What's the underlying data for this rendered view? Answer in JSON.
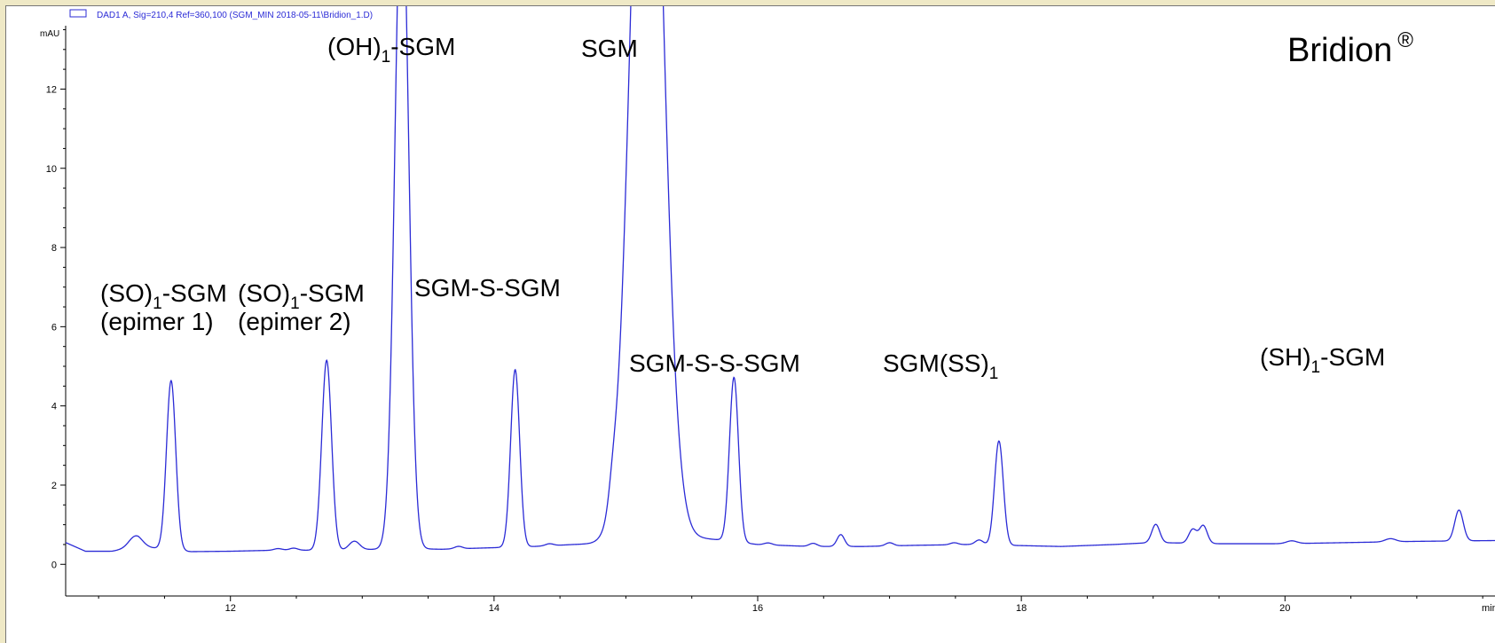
{
  "legend": {
    "text": "DAD1 A, Sig=210,4 Ref=360,100 (SGM_MIN 2018-05-11\\Bridion_1.D)",
    "color": "#2b2bd6"
  },
  "brand": {
    "name": "Bridion",
    "mark": "®"
  },
  "chart_data": {
    "type": "line",
    "ylabel": "mAU",
    "xlabel": "min",
    "xlim": [
      10.75,
      21.6
    ],
    "ylim": [
      -0.8,
      13.6
    ],
    "xticks": [
      12,
      14,
      16,
      18,
      20
    ],
    "yticks": [
      0,
      2,
      4,
      6,
      8,
      10,
      12
    ],
    "line_color": "#2b2bd6",
    "baseline": [
      [
        10.75,
        0.55
      ],
      [
        10.9,
        0.33
      ],
      [
        11.1,
        0.33
      ],
      [
        11.3,
        0.45
      ],
      [
        11.7,
        0.32
      ],
      [
        12.0,
        0.33
      ],
      [
        12.4,
        0.36
      ],
      [
        12.8,
        0.35
      ],
      [
        13.3,
        0.4
      ],
      [
        13.6,
        0.38
      ],
      [
        14.0,
        0.42
      ],
      [
        14.3,
        0.45
      ],
      [
        14.6,
        0.5
      ],
      [
        15.0,
        0.55
      ],
      [
        15.4,
        0.7
      ],
      [
        15.7,
        0.62
      ],
      [
        16.0,
        0.5
      ],
      [
        16.4,
        0.45
      ],
      [
        16.8,
        0.45
      ],
      [
        17.2,
        0.48
      ],
      [
        17.6,
        0.5
      ],
      [
        17.9,
        0.48
      ],
      [
        18.3,
        0.45
      ],
      [
        18.7,
        0.5
      ],
      [
        19.0,
        0.55
      ],
      [
        19.5,
        0.52
      ],
      [
        20.0,
        0.52
      ],
      [
        20.5,
        0.55
      ],
      [
        21.0,
        0.58
      ],
      [
        21.6,
        0.6
      ]
    ],
    "peaks": [
      {
        "rt": 11.28,
        "height": 0.28,
        "width": 0.05
      },
      {
        "rt": 11.55,
        "height": 4.27,
        "width": 0.035
      },
      {
        "rt": 12.36,
        "height": 0.04,
        "width": 0.03
      },
      {
        "rt": 12.48,
        "height": 0.05,
        "width": 0.03
      },
      {
        "rt": 12.73,
        "height": 4.8,
        "width": 0.037
      },
      {
        "rt": 12.94,
        "height": 0.22,
        "width": 0.04
      },
      {
        "rt": 13.3,
        "height": 17.0,
        "width": 0.052
      },
      {
        "rt": 13.73,
        "height": 0.06,
        "width": 0.03
      },
      {
        "rt": 14.16,
        "height": 4.48,
        "width": 0.034
      },
      {
        "rt": 14.42,
        "height": 0.05,
        "width": 0.03
      },
      {
        "rt": 14.9,
        "height": 0.45,
        "width": 0.03
      },
      {
        "rt": 15.16,
        "height": 24.0,
        "width": 0.115
      },
      {
        "rt": 15.82,
        "height": 4.15,
        "width": 0.034
      },
      {
        "rt": 16.08,
        "height": 0.05,
        "width": 0.03
      },
      {
        "rt": 16.42,
        "height": 0.08,
        "width": 0.03
      },
      {
        "rt": 16.63,
        "height": 0.3,
        "width": 0.028
      },
      {
        "rt": 17.0,
        "height": 0.08,
        "width": 0.03
      },
      {
        "rt": 17.49,
        "height": 0.05,
        "width": 0.03
      },
      {
        "rt": 17.68,
        "height": 0.12,
        "width": 0.03
      },
      {
        "rt": 17.83,
        "height": 2.63,
        "width": 0.033
      },
      {
        "rt": 19.02,
        "height": 0.46,
        "width": 0.03
      },
      {
        "rt": 19.3,
        "height": 0.35,
        "width": 0.03
      },
      {
        "rt": 19.38,
        "height": 0.45,
        "width": 0.03
      },
      {
        "rt": 20.05,
        "height": 0.07,
        "width": 0.04
      },
      {
        "rt": 20.8,
        "height": 0.08,
        "width": 0.04
      },
      {
        "rt": 21.32,
        "height": 0.78,
        "width": 0.032
      }
    ],
    "annotations": [
      {
        "rt": 11.55,
        "lines": [
          {
            "pre": "(SO)",
            "sub": "1",
            "post": "-SGM"
          },
          {
            "pre": "(epimer 1)",
            "sub": "",
            "post": ""
          }
        ]
      },
      {
        "rt": 12.73,
        "lines": [
          {
            "pre": "(SO)",
            "sub": "1",
            "post": "-SGM"
          },
          {
            "pre": "(epimer 2)",
            "sub": "",
            "post": ""
          }
        ]
      },
      {
        "rt": 13.3,
        "lines": [
          {
            "pre": "(OH)",
            "sub": "1",
            "post": "-SGM"
          }
        ]
      },
      {
        "rt": 14.16,
        "lines": [
          {
            "pre": "SGM-S-SGM",
            "sub": "",
            "post": ""
          }
        ]
      },
      {
        "rt": 15.16,
        "lines": [
          {
            "pre": "SGM",
            "sub": "",
            "post": ""
          }
        ]
      },
      {
        "rt": 15.82,
        "lines": [
          {
            "pre": "SGM-S-S-SGM",
            "sub": "",
            "post": ""
          }
        ]
      },
      {
        "rt": 17.83,
        "lines": [
          {
            "pre": "SGM(SS)",
            "sub": "1",
            "post": ""
          }
        ]
      },
      {
        "rt": 21.32,
        "lines": [
          {
            "pre": "(SH)",
            "sub": "1",
            "post": "-SGM"
          }
        ]
      }
    ]
  }
}
